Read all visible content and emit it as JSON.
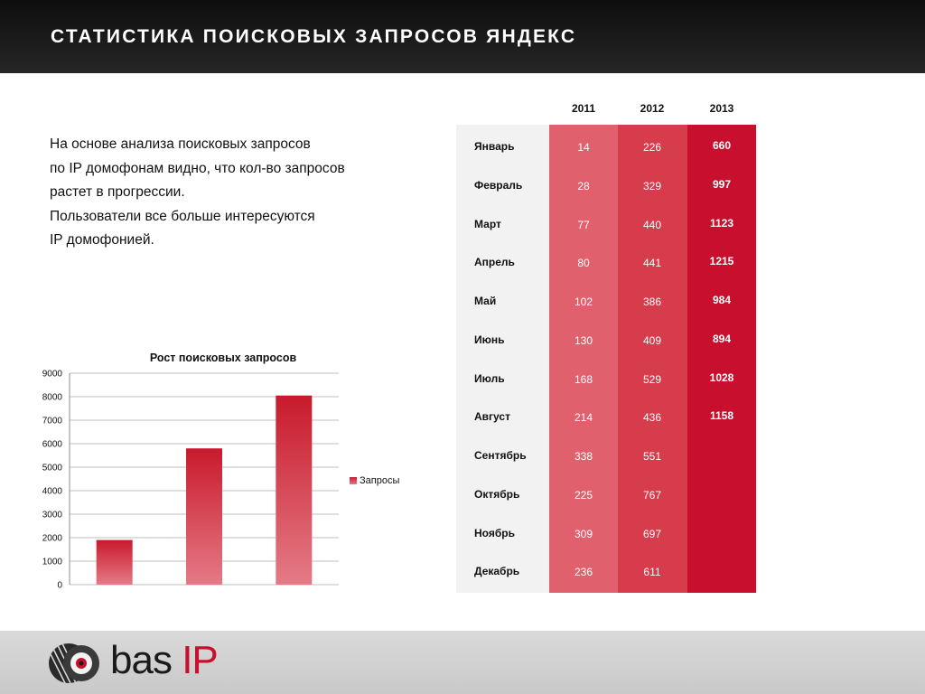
{
  "header": {
    "title": "СТАТИСТИКА ПОИСКОВЫХ ЗАПРОСОВ ЯНДЕКС"
  },
  "intro": {
    "lines": [
      "На основе анализа поисковых запросов",
      "по IP домофонам видно, что кол-во запросов",
      "растет в прогрессии.",
      "Пользователи все больше интересуются",
      "IP домофонией."
    ]
  },
  "table": {
    "years": [
      "2011",
      "2012",
      "2013"
    ],
    "colors": {
      "label_bg": "#f2f2f2",
      "y2011": "#e0616d",
      "y2012": "#d63c4c",
      "y2013": "#c8102e"
    },
    "rows": [
      {
        "month": "Январь",
        "v2011": "14",
        "v2012": "226",
        "v2013": "660"
      },
      {
        "month": "Февраль",
        "v2011": "28",
        "v2012": "329",
        "v2013": "997"
      },
      {
        "month": "Март",
        "v2011": "77",
        "v2012": "440",
        "v2013": "1123"
      },
      {
        "month": "Апрель",
        "v2011": "80",
        "v2012": "441",
        "v2013": "1215"
      },
      {
        "month": "Май",
        "v2011": "102",
        "v2012": "386",
        "v2013": "984"
      },
      {
        "month": "Июнь",
        "v2011": "130",
        "v2012": "409",
        "v2013": "894"
      },
      {
        "month": "Июль",
        "v2011": "168",
        "v2012": "529",
        "v2013": "1028"
      },
      {
        "month": "Август",
        "v2011": "214",
        "v2012": "436",
        "v2013": "1158"
      },
      {
        "month": "Сентябрь",
        "v2011": "338",
        "v2012": "551",
        "v2013": ""
      },
      {
        "month": "Октябрь",
        "v2011": "225",
        "v2012": "767",
        "v2013": ""
      },
      {
        "month": "Ноябрь",
        "v2011": "309",
        "v2012": "697",
        "v2013": ""
      },
      {
        "month": "Декабрь",
        "v2011": "236",
        "v2012": "611",
        "v2013": ""
      }
    ]
  },
  "chart_data": {
    "type": "bar",
    "title": "Рост поисковых запросов",
    "categories": [
      "",
      "",
      ""
    ],
    "series": [
      {
        "name": "Запросы",
        "values": [
          1900,
          5800,
          8050
        ]
      }
    ],
    "ylim": [
      0,
      9000
    ],
    "yticks": [
      "0",
      "1000",
      "2000",
      "3000",
      "4000",
      "5000",
      "6000",
      "7000",
      "8000",
      "9000"
    ],
    "xlabel": "",
    "ylabel": "",
    "grid": true,
    "legend": "right",
    "bar_color_top": "#c81a2c",
    "bar_color_bottom": "#e57a86"
  },
  "footer": {
    "brand_part1": "bas",
    "brand_part2": "IP",
    "brand_color": "#c8102e"
  }
}
